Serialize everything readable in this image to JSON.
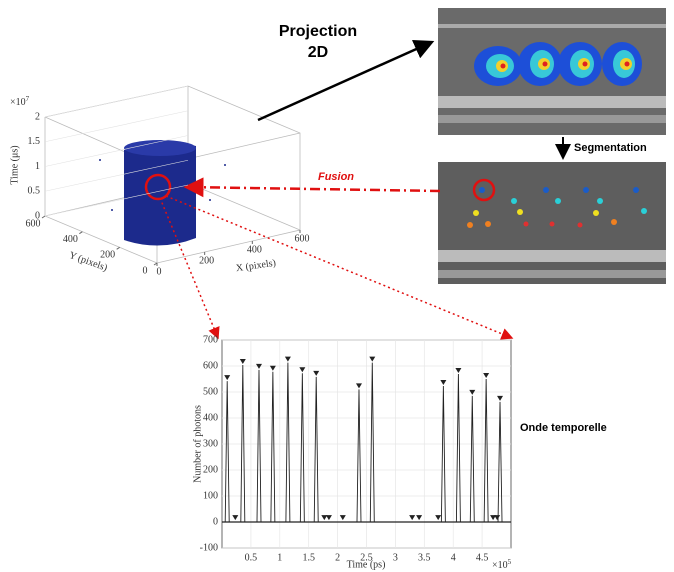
{
  "labels": {
    "projection": [
      "Projection",
      "2D"
    ],
    "segmentation": "Segmentation",
    "fusion": "Fusion",
    "onde": "Onde temporelle"
  },
  "scatter3d": {
    "zlabel": "Time (μs)",
    "xlabel": "X (pixels)",
    "ylabel": "Y (pixels)",
    "zexponent": {
      "base": "×10",
      "power": "7"
    },
    "zlim": [
      0,
      2
    ],
    "zticks": [
      0,
      0.5,
      1,
      1.5,
      2
    ],
    "xlim": [
      0,
      600
    ],
    "xticks": [
      0,
      200,
      400,
      600
    ],
    "ylim": [
      0,
      600
    ],
    "yticks": [
      0,
      200,
      400,
      600
    ]
  },
  "chart_data": {
    "type": "line",
    "xlabel": "Time (ps)",
    "ylabel": "Number of photons",
    "xexponent": {
      "base": "×10",
      "power": "5"
    },
    "xlim": [
      0,
      5
    ],
    "xticks": [
      0.5,
      1,
      1.5,
      2,
      2.5,
      3,
      3.5,
      4,
      4.5
    ],
    "ylim": [
      -100,
      700
    ],
    "yticks": [
      -100,
      0,
      100,
      200,
      300,
      400,
      500,
      600,
      700
    ],
    "grid": true,
    "color": "#222222",
    "peaks": {
      "x": [
        0.09,
        0.36,
        0.64,
        0.88,
        1.14,
        1.39,
        1.63,
        2.37,
        2.6,
        3.83,
        4.09,
        4.33,
        4.57,
        4.81
      ],
      "values": [
        542,
        604,
        585,
        578,
        613,
        572,
        558,
        510,
        613,
        523,
        569,
        485,
        550,
        462
      ]
    },
    "minor": {
      "x": [
        0.23,
        1.77,
        1.85,
        2.09,
        3.29,
        3.41,
        3.74,
        4.69,
        4.76
      ],
      "values": [
        15,
        15,
        15,
        15,
        15,
        15,
        15,
        15,
        15
      ]
    }
  }
}
